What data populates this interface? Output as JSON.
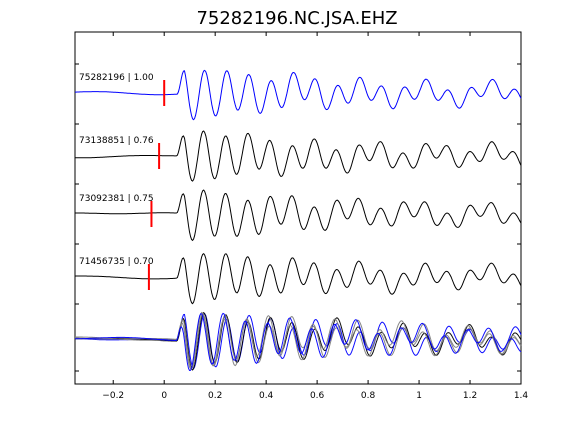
{
  "chart_data": {
    "type": "line",
    "title": "75282196.NC.JSA.EHZ",
    "xlabel": "",
    "ylabel": "",
    "xlim": [
      -0.35,
      1.4
    ],
    "x_ticks": [
      -0.2,
      0,
      0.2,
      0.4,
      0.6,
      0.8,
      1,
      1.2,
      1.4
    ],
    "x_tick_labels": [
      "−0.2",
      "0",
      "0.2",
      "0.4",
      "0.6",
      "0.8",
      "1",
      "1.2",
      "1.4"
    ],
    "grid": false,
    "legend": "none",
    "colors": {
      "reference": "#0000ff",
      "neighbor": "#000000",
      "stack_gray": "#808080",
      "pick": "#ff0000"
    },
    "series": [
      {
        "name": "75282196 | 1.00",
        "event_id": "75282196",
        "correlation": 1.0,
        "pick_time": 0.0,
        "onset": 0.05,
        "color": "#0000ff"
      },
      {
        "name": "73138851 | 0.76",
        "event_id": "73138851",
        "correlation": 0.76,
        "pick_time": -0.02,
        "onset": 0.05,
        "color": "#000000"
      },
      {
        "name": "73092381 | 0.75",
        "event_id": "73092381",
        "correlation": 0.75,
        "pick_time": -0.05,
        "onset": 0.05,
        "color": "#000000"
      },
      {
        "name": "71456735 | 0.70",
        "event_id": "71456735",
        "correlation": 0.7,
        "pick_time": -0.06,
        "onset": 0.05,
        "color": "#000000"
      }
    ],
    "overlay": {
      "description": "aligned waveform stack",
      "traces": [
        "#0000ff",
        "#000000",
        "#808080",
        "#808080",
        "#0000ff"
      ]
    }
  }
}
